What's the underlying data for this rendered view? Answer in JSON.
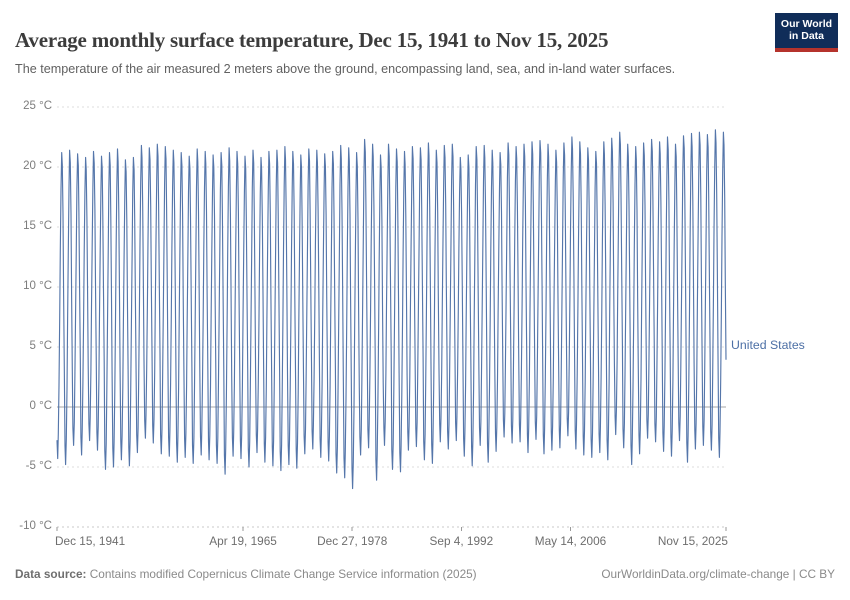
{
  "header": {
    "title": "Average monthly surface temperature, Dec 15, 1941 to Nov 15, 2025",
    "subtitle": "The temperature of the air measured 2 meters above the ground, encompassing land, sea, and in-land water surfaces.",
    "logo": {
      "line1": "Our World",
      "line2": "in Data",
      "bg_color": "#102d59",
      "accent_color": "#b5332c"
    }
  },
  "footer": {
    "source_label": "Data source:",
    "source_text": " Contains modified Copernicus Climate Change Service information (2025)",
    "attribution": "OurWorldinData.org/climate-change | CC BY"
  },
  "palette": {
    "line": "#4c6fa5",
    "grid": "#dcdcdc",
    "zero_line": "#a6a6a6",
    "bottom_line": "#c9c9c9",
    "tick_mark": "#9a9a9a",
    "title_text": "#3c3c3c",
    "subtitle_text": "#616161",
    "axis_text": "#7d7d7d",
    "footer_text": "#8a8a8a"
  },
  "chart_data": {
    "type": "line",
    "title": "Average monthly surface temperature, Dec 15, 1941 to Nov 15, 2025",
    "xlabel": "",
    "ylabel": "°C",
    "ylim": [
      -10,
      25
    ],
    "grid": true,
    "legend_position": "right",
    "x_domain_years": [
      1941.958,
      2025.874
    ],
    "y_ticks": [
      {
        "value": 25,
        "label": "25 °C"
      },
      {
        "value": 20,
        "label": "20 °C"
      },
      {
        "value": 15,
        "label": "15 °C"
      },
      {
        "value": 10,
        "label": "10 °C"
      },
      {
        "value": 5,
        "label": "5 °C"
      },
      {
        "value": 0,
        "label": "0 °C"
      },
      {
        "value": -5,
        "label": "-5 °C"
      },
      {
        "value": -10,
        "label": "-10 °C"
      }
    ],
    "x_ticks": [
      {
        "label": "Dec 15, 1941",
        "year": 1941.958,
        "align": "start"
      },
      {
        "label": "Apr 19, 1965",
        "year": 1965.3,
        "align": "middle"
      },
      {
        "label": "Dec 27, 1978",
        "year": 1978.99,
        "align": "middle"
      },
      {
        "label": "Sep 4, 1992",
        "year": 1992.68,
        "align": "middle"
      },
      {
        "label": "May 14, 2006",
        "year": 2006.37,
        "align": "middle"
      },
      {
        "label": "Nov 15, 2025",
        "year": 2025.874,
        "align": "end"
      }
    ],
    "series": [
      {
        "name": "United States",
        "color": "#4c6fa5",
        "cadence": "monthly",
        "start_month": "Dec 1941",
        "end_month": "Nov 2025",
        "n_points": 1008,
        "seasonal_shape_jan_to_dec": [
          0,
          0.08,
          0.24,
          0.46,
          0.68,
          0.88,
          1,
          0.96,
          0.8,
          0.54,
          0.3,
          0.06
        ],
        "summer_max_by_year_1942_2025": [
          21.2,
          21.4,
          21.1,
          20.8,
          21.3,
          20.9,
          21.2,
          21.5,
          20.6,
          20.8,
          21.8,
          21.6,
          21.9,
          21.7,
          21.4,
          21.2,
          20.9,
          21.5,
          21.3,
          21.0,
          21.2,
          21.6,
          21.3,
          20.9,
          21.4,
          20.8,
          21.3,
          21.4,
          21.7,
          21.3,
          21.0,
          21.5,
          21.4,
          21.1,
          21.3,
          21.8,
          21.6,
          21.2,
          22.3,
          21.9,
          21.0,
          21.9,
          21.5,
          21.3,
          21.7,
          21.6,
          22.0,
          21.4,
          21.8,
          21.9,
          20.8,
          21.0,
          21.7,
          21.8,
          21.4,
          21.2,
          22.0,
          21.7,
          21.9,
          22.1,
          22.2,
          21.9,
          21.4,
          22.0,
          22.5,
          22.1,
          21.6,
          21.3,
          22.1,
          22.4,
          22.9,
          21.9,
          21.7,
          22.0,
          22.3,
          22.1,
          22.5,
          21.9,
          22.6,
          22.8,
          22.9,
          22.7,
          23.1,
          22.9
        ],
        "winter_min_by_year_1942_2025": [
          -4.3,
          -4.8,
          -3.2,
          -4.0,
          -2.8,
          -3.6,
          -5.2,
          -5.0,
          -4.4,
          -4.9,
          -3.8,
          -2.6,
          -3.0,
          -3.9,
          -4.1,
          -4.6,
          -4.2,
          -4.7,
          -4.0,
          -4.4,
          -4.7,
          -5.6,
          -4.1,
          -4.3,
          -5.0,
          -3.8,
          -4.6,
          -4.9,
          -5.3,
          -4.8,
          -5.1,
          -3.9,
          -3.5,
          -4.2,
          -4.5,
          -5.5,
          -5.9,
          -6.8,
          -4.0,
          -3.4,
          -6.1,
          -3.2,
          -5.2,
          -5.4,
          -3.6,
          -3.3,
          -4.4,
          -4.7,
          -2.9,
          -3.5,
          -2.8,
          -4.1,
          -4.9,
          -3.2,
          -4.6,
          -3.7,
          -2.5,
          -3.0,
          -2.9,
          -3.8,
          -2.7,
          -3.9,
          -3.6,
          -3.4,
          -2.4,
          -3.5,
          -4.0,
          -4.2,
          -3.8,
          -4.4,
          -2.3,
          -3.4,
          -4.8,
          -3.9,
          -2.6,
          -2.9,
          -3.7,
          -4.1,
          -2.8,
          -4.6,
          -3.5,
          -3.2,
          -3.6,
          -4.2
        ]
      }
    ]
  }
}
